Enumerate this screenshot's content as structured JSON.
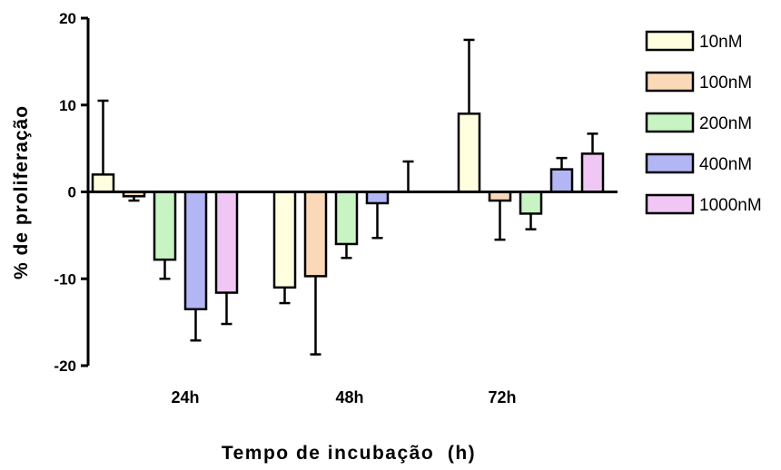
{
  "chart_data": {
    "type": "bar",
    "title": "",
    "xlabel": "Tempo de incubação  (h)",
    "ylabel": "% de proliferação",
    "ylim": [
      -20,
      20
    ],
    "yticks": [
      -20,
      -10,
      0,
      10,
      20
    ],
    "yticks_labels": [
      "-20",
      "-10",
      "0",
      "10",
      "20"
    ],
    "categories": [
      "24h",
      "48h",
      "72h"
    ],
    "legend_position": "right",
    "grid": false,
    "series": [
      {
        "name": "10nM",
        "color": "#ffffe0",
        "values": [
          2.0,
          -11.0,
          9.0
        ],
        "errors": [
          8.5,
          1.8,
          8.5
        ]
      },
      {
        "name": "100nM",
        "color": "#fbd8b8",
        "values": [
          -0.5,
          -9.7,
          -1.0
        ],
        "errors": [
          0.5,
          9.0,
          4.5
        ]
      },
      {
        "name": "200nM",
        "color": "#c8f4c4",
        "values": [
          -7.8,
          -6.0,
          -2.5
        ],
        "errors": [
          2.2,
          1.6,
          1.8
        ]
      },
      {
        "name": "400nM",
        "color": "#b3b6f4",
        "values": [
          -13.5,
          -1.3,
          2.6
        ],
        "errors": [
          3.6,
          4.0,
          1.3
        ]
      },
      {
        "name": "1000nM",
        "color": "#efc6f4",
        "values": [
          -11.6,
          0,
          4.4
        ],
        "errors": [
          3.6,
          3.5,
          2.3
        ]
      }
    ]
  }
}
